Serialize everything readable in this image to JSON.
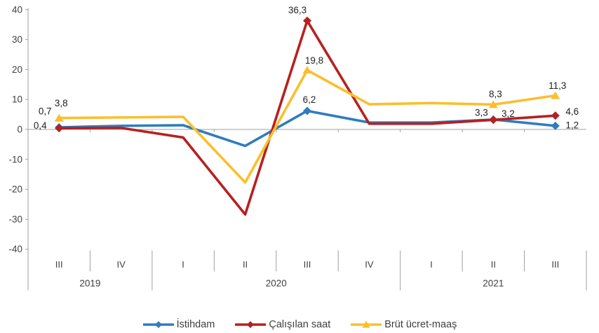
{
  "chart_data": {
    "type": "line",
    "title": "",
    "xlabel": "",
    "ylabel": "",
    "categories": [
      "III",
      "IV",
      "I",
      "II",
      "III",
      "IV",
      "I",
      "II",
      "III"
    ],
    "year_groups": [
      {
        "label": "2019",
        "quarters": 2
      },
      {
        "label": "2020",
        "quarters": 4
      },
      {
        "label": "2021",
        "quarters": 3
      }
    ],
    "ylim": [
      -40,
      40
    ],
    "yticks": [
      40,
      30,
      20,
      10,
      0,
      -10,
      -20,
      -30,
      -40
    ],
    "grid": false,
    "legend_position": "bottom",
    "decimal_separator": ",",
    "axis_color": "#a0a0a0",
    "marker_indices": [
      0,
      4,
      7,
      8
    ],
    "series": [
      {
        "key": "istihdam",
        "name": "İstihdam",
        "color": "#2e7dbe",
        "marker": "diamond",
        "values": [
          0.7,
          1.2,
          1.4,
          -5.5,
          6.2,
          2.3,
          2.3,
          3.3,
          1.2
        ],
        "data_labels": [
          {
            "i": 0,
            "text": "0,7",
            "dx": -20,
            "dy": -23
          },
          {
            "i": 4,
            "text": "6,2",
            "dx": 3,
            "dy": -16
          },
          {
            "i": 7,
            "text": "3,3",
            "dx": -17,
            "dy": -10
          },
          {
            "i": 8,
            "text": "1,2",
            "dx": 24,
            "dy": -1
          }
        ]
      },
      {
        "key": "calisilan-saat",
        "name": "Çalışılan saat",
        "color": "#b6211f",
        "marker": "diamond",
        "values": [
          0.4,
          0.5,
          -2.7,
          -28.4,
          36.3,
          1.9,
          1.9,
          3.2,
          4.6
        ],
        "data_labels": [
          {
            "i": 0,
            "text": "0,4",
            "dx": -27,
            "dy": -4
          },
          {
            "i": 4,
            "text": "36,3",
            "dx": -14,
            "dy": -15
          },
          {
            "i": 7,
            "text": "3,2",
            "dx": 21,
            "dy": -9
          },
          {
            "i": 8,
            "text": "4,6",
            "dx": 24,
            "dy": -6
          }
        ]
      },
      {
        "key": "brut-ucret-maas",
        "name": "Brüt ücret-maaş",
        "color": "#fbbf2c",
        "marker": "triangle",
        "values": [
          3.8,
          4.0,
          4.2,
          -17.7,
          19.8,
          8.4,
          8.8,
          8.3,
          11.3
        ],
        "data_labels": [
          {
            "i": 0,
            "text": "3,8",
            "dx": 3,
            "dy": -21
          },
          {
            "i": 4,
            "text": "19,8",
            "dx": 10,
            "dy": -14
          },
          {
            "i": 7,
            "text": "8,3",
            "dx": 3,
            "dy": -15
          },
          {
            "i": 8,
            "text": "11,3",
            "dx": 3,
            "dy": -14
          }
        ]
      }
    ]
  }
}
